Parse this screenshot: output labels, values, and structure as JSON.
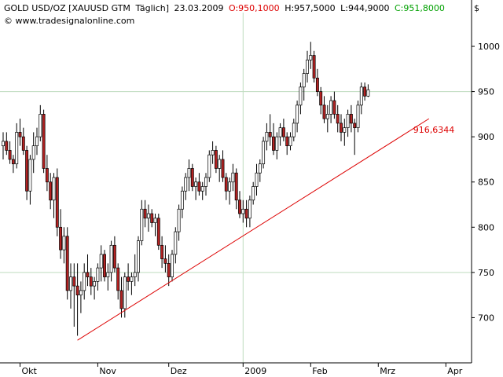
{
  "header": {
    "title": "GOLD USD/OZ [XAUUSD GTM",
    "period": "Täglich]",
    "date": "23.03.2009",
    "open_label": "O:950,1000",
    "high_label": "H:957,5000",
    "low_label": "L:944,9000",
    "close_label": "C:951,8000",
    "copyright": "© www.tradesignalonline.com",
    "currency": "$"
  },
  "colors": {
    "up": "#ffffff",
    "down": "#b22222",
    "wick": "#000000",
    "trendline": "#dd0000",
    "grid": "#bfdcbf",
    "open": "#dd0000",
    "close": "#00a000"
  },
  "chart_data": {
    "type": "candlestick",
    "ylim": [
      650,
      1020
    ],
    "y_ticks": [
      700,
      750,
      800,
      850,
      900,
      950,
      1000
    ],
    "y_tick_labels": [
      "700",
      "750",
      "800",
      "850",
      "900",
      "950",
      "1000"
    ],
    "x_labels": [
      {
        "label": "Okt",
        "index": 5
      },
      {
        "label": "Nov",
        "index": 28
      },
      {
        "label": "Dez",
        "index": 49
      },
      {
        "label": "2009",
        "index": 71
      },
      {
        "label": "Feb",
        "index": 91
      },
      {
        "label": "Mrz",
        "index": 111
      },
      {
        "label": "Apr",
        "index": 131
      }
    ],
    "grid_vertical_index": 71,
    "grid_horizontal": [
      750,
      950
    ],
    "trendline": {
      "start": {
        "index": 22,
        "value": 675
      },
      "end": {
        "index": 126,
        "value": 920
      },
      "label": "916,6344"
    },
    "candles": [
      [
        890,
        905,
        875,
        895
      ],
      [
        895,
        905,
        880,
        885
      ],
      [
        885,
        895,
        870,
        875
      ],
      [
        875,
        880,
        860,
        870
      ],
      [
        870,
        915,
        865,
        905
      ],
      [
        905,
        920,
        890,
        900
      ],
      [
        900,
        910,
        880,
        885
      ],
      [
        885,
        890,
        830,
        840
      ],
      [
        840,
        880,
        825,
        875
      ],
      [
        875,
        905,
        860,
        890
      ],
      [
        890,
        910,
        880,
        900
      ],
      [
        900,
        935,
        895,
        925
      ],
      [
        925,
        930,
        860,
        865
      ],
      [
        865,
        880,
        840,
        850
      ],
      [
        850,
        860,
        820,
        830
      ],
      [
        830,
        860,
        810,
        855
      ],
      [
        855,
        865,
        790,
        800
      ],
      [
        800,
        820,
        765,
        775
      ],
      [
        775,
        800,
        760,
        790
      ],
      [
        790,
        800,
        720,
        730
      ],
      [
        730,
        760,
        710,
        745
      ],
      [
        745,
        760,
        690,
        735
      ],
      [
        735,
        760,
        680,
        725
      ],
      [
        725,
        740,
        705,
        730
      ],
      [
        730,
        760,
        720,
        750
      ],
      [
        750,
        770,
        735,
        745
      ],
      [
        745,
        755,
        725,
        735
      ],
      [
        735,
        745,
        720,
        740
      ],
      [
        740,
        760,
        730,
        755
      ],
      [
        755,
        780,
        740,
        770
      ],
      [
        770,
        775,
        740,
        745
      ],
      [
        745,
        760,
        730,
        750
      ],
      [
        750,
        785,
        740,
        780
      ],
      [
        780,
        790,
        750,
        755
      ],
      [
        755,
        760,
        720,
        730
      ],
      [
        730,
        745,
        700,
        710
      ],
      [
        710,
        750,
        700,
        745
      ],
      [
        745,
        760,
        730,
        740
      ],
      [
        740,
        750,
        725,
        745
      ],
      [
        745,
        770,
        735,
        750
      ],
      [
        750,
        790,
        740,
        785
      ],
      [
        785,
        830,
        780,
        820
      ],
      [
        820,
        830,
        800,
        810
      ],
      [
        810,
        825,
        795,
        815
      ],
      [
        815,
        820,
        800,
        805
      ],
      [
        805,
        815,
        790,
        810
      ],
      [
        810,
        815,
        775,
        780
      ],
      [
        780,
        790,
        755,
        765
      ],
      [
        765,
        780,
        750,
        760
      ],
      [
        760,
        770,
        735,
        745
      ],
      [
        745,
        775,
        740,
        770
      ],
      [
        770,
        800,
        760,
        795
      ],
      [
        795,
        825,
        785,
        820
      ],
      [
        820,
        845,
        810,
        840
      ],
      [
        840,
        860,
        830,
        855
      ],
      [
        855,
        875,
        840,
        865
      ],
      [
        865,
        870,
        840,
        845
      ],
      [
        845,
        855,
        830,
        850
      ],
      [
        850,
        860,
        835,
        840
      ],
      [
        840,
        850,
        830,
        845
      ],
      [
        845,
        860,
        835,
        855
      ],
      [
        855,
        885,
        850,
        880
      ],
      [
        880,
        895,
        870,
        885
      ],
      [
        885,
        890,
        860,
        865
      ],
      [
        865,
        880,
        850,
        875
      ],
      [
        875,
        885,
        850,
        855
      ],
      [
        855,
        860,
        830,
        840
      ],
      [
        840,
        855,
        825,
        850
      ],
      [
        850,
        870,
        840,
        860
      ],
      [
        860,
        865,
        820,
        830
      ],
      [
        830,
        840,
        810,
        815
      ],
      [
        815,
        830,
        805,
        820
      ],
      [
        820,
        830,
        800,
        810
      ],
      [
        810,
        835,
        800,
        830
      ],
      [
        830,
        850,
        825,
        845
      ],
      [
        845,
        870,
        835,
        860
      ],
      [
        860,
        875,
        850,
        870
      ],
      [
        870,
        900,
        865,
        895
      ],
      [
        895,
        915,
        885,
        905
      ],
      [
        905,
        925,
        890,
        900
      ],
      [
        900,
        915,
        880,
        885
      ],
      [
        885,
        905,
        875,
        900
      ],
      [
        900,
        915,
        890,
        910
      ],
      [
        910,
        920,
        895,
        900
      ],
      [
        900,
        905,
        880,
        890
      ],
      [
        890,
        905,
        885,
        900
      ],
      [
        900,
        920,
        895,
        915
      ],
      [
        915,
        940,
        905,
        935
      ],
      [
        935,
        960,
        925,
        955
      ],
      [
        955,
        975,
        940,
        970
      ],
      [
        970,
        995,
        960,
        985
      ],
      [
        985,
        1005,
        975,
        990
      ],
      [
        990,
        995,
        960,
        965
      ],
      [
        965,
        975,
        945,
        950
      ],
      [
        950,
        955,
        925,
        935
      ],
      [
        935,
        945,
        915,
        920
      ],
      [
        920,
        935,
        905,
        925
      ],
      [
        925,
        945,
        915,
        940
      ],
      [
        940,
        950,
        920,
        925
      ],
      [
        925,
        935,
        905,
        915
      ],
      [
        915,
        925,
        895,
        905
      ],
      [
        905,
        920,
        890,
        910
      ],
      [
        910,
        930,
        900,
        925
      ],
      [
        925,
        935,
        905,
        915
      ],
      [
        915,
        920,
        880,
        910
      ],
      [
        910,
        940,
        905,
        935
      ],
      [
        935,
        960,
        925,
        955
      ],
      [
        955,
        960,
        940,
        945
      ],
      [
        945,
        958,
        944,
        952
      ]
    ]
  }
}
